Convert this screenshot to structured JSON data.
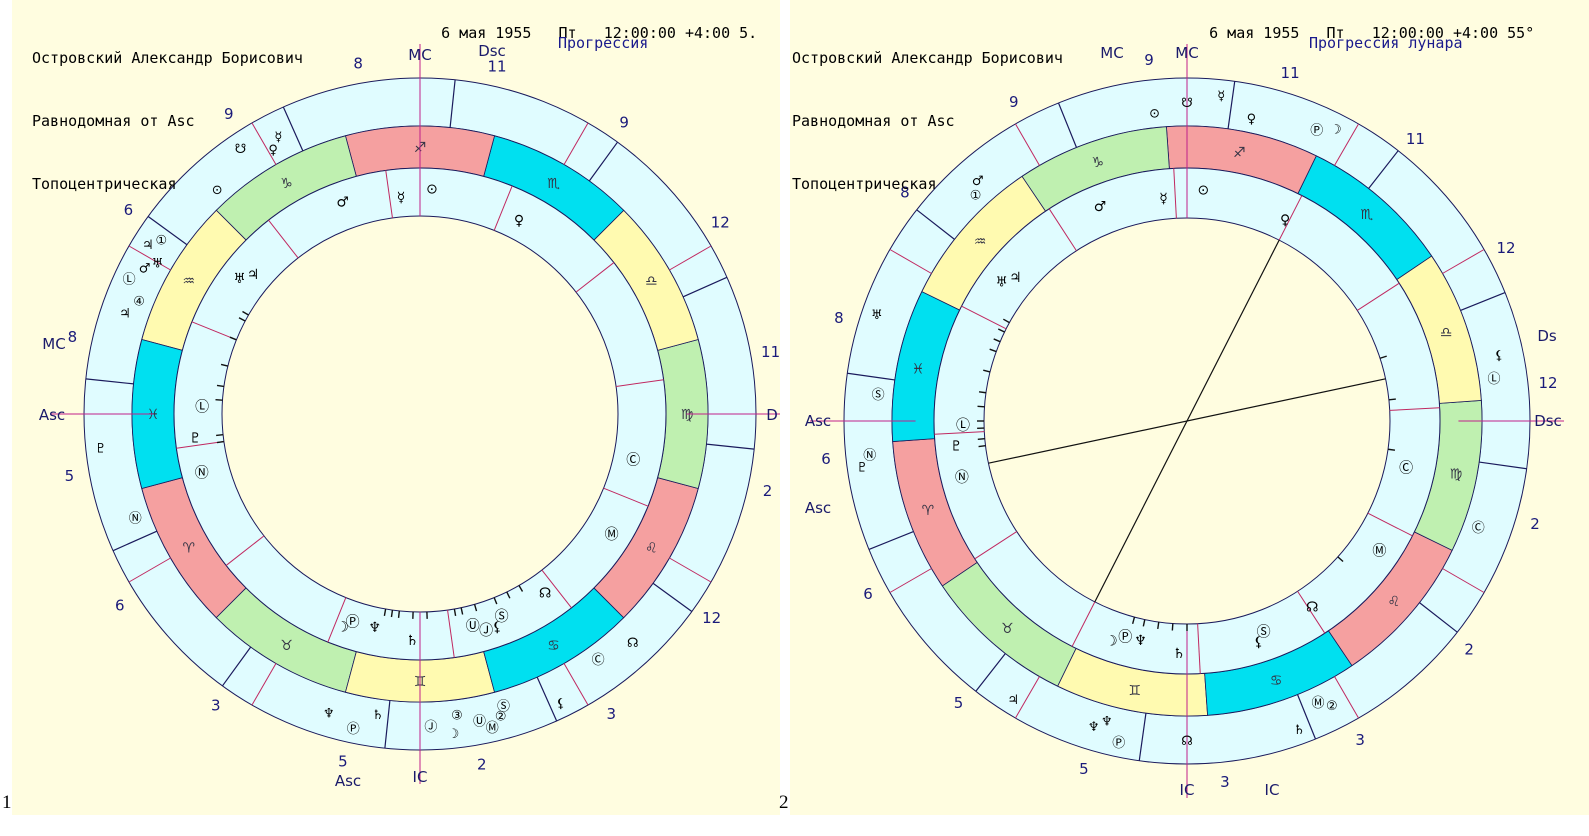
{
  "header": {
    "name": "Островский Александр Борисович",
    "house_system": "Равнодомная от Asc",
    "coordinates": "Топоцентрическая",
    "date": "6 мая 1955",
    "weekday": "Пт",
    "time": "12:00:00 +4:00",
    "panel1_truncated": "5.",
    "panel2_truncated": "55°"
  },
  "panel_numbers": [
    "1",
    "2"
  ],
  "panels": [
    {
      "mode": "Прогрессия",
      "angle_labels": [
        "MC",
        "Dsc",
        "Asc",
        "IC",
        "MC",
        "Asc",
        "D"
      ],
      "outer_house_numbers": [
        "8",
        "9",
        "6",
        "8",
        "5",
        "6",
        "3",
        "5",
        "2",
        "3",
        "12",
        "2",
        "11",
        "12",
        "9",
        "11"
      ],
      "inner_planets": [
        "♂",
        "☿",
        "⊙",
        "♀",
        "♅",
        "♃",
        "♇",
        "Ⓛ",
        "Ⓝ",
        "Ⓒ",
        "Ⓜ",
        "☊",
        "♄",
        "Ⓟ",
        "☽",
        "♆",
        "⚸",
        "Ⓢ",
        "Ⓙ",
        "Ⓤ"
      ],
      "outer_planets": [
        "♀",
        "☿",
        "☋",
        "⊙",
        "①",
        "♃",
        "♅",
        "♂",
        "Ⓛ",
        "④",
        "♃",
        "♇",
        "Ⓝ",
        "♆",
        "Ⓟ",
        "♄",
        "Ⓙ",
        "☽",
        "③",
        "Ⓤ",
        "Ⓜ",
        "Ⓢ",
        "②",
        "⚸",
        "Ⓒ",
        "☊"
      ]
    },
    {
      "mode": "Прогрессия лунара",
      "angle_labels": [
        "MC",
        "MC",
        "Ds",
        "Dsc",
        "Asc",
        "Asc",
        "IC",
        "IC"
      ],
      "outer_house_numbers": [
        "9",
        "9",
        "8",
        "8",
        "6",
        "6",
        "5",
        "5",
        "3",
        "3",
        "2",
        "2",
        "12",
        "12",
        "11",
        "11"
      ],
      "inner_planets": [
        "♂",
        "☿",
        "⊙",
        "♀",
        "♅",
        "♃",
        "♇",
        "Ⓛ",
        "Ⓝ",
        "Ⓒ",
        "Ⓜ",
        "☊",
        "♄",
        "Ⓟ",
        "☽",
        "♆",
        "⚸",
        "Ⓢ"
      ],
      "outer_planets": [
        "⊙",
        "☋",
        "☿",
        "♀",
        "Ⓟ",
        "☽",
        "①",
        "♂",
        "♅",
        "Ⓢ",
        "Ⓝ",
        "♇",
        "Ⓛ",
        "⚸",
        "♃",
        "Ⓒ",
        "♆",
        "Ⓟ",
        "♆",
        "☊",
        "♄",
        "Ⓜ",
        "②"
      ]
    }
  ],
  "zodiac_signs": [
    "♈",
    "♉",
    "♊",
    "♋",
    "♌",
    "♍",
    "♎",
    "♏",
    "♐",
    "♑",
    "♒",
    "♓"
  ],
  "zodiac_colors": {
    "fire": "#f5a0a0",
    "earth": "#bff0b0",
    "air": "#fffab0",
    "water": "#00e0f0"
  },
  "wheel_colors": {
    "ring": "#e0fcff",
    "background": "#fffde0",
    "line": "#1a1a5c",
    "axis": "#c0208a"
  }
}
